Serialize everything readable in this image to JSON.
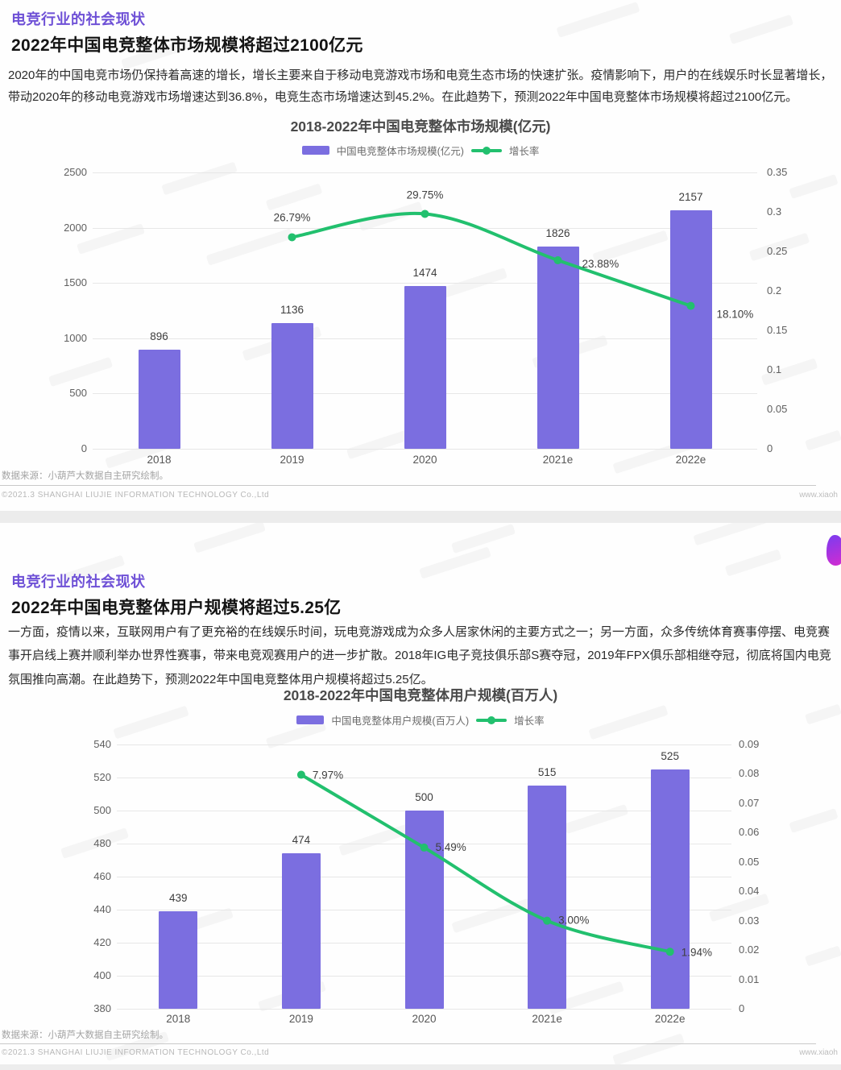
{
  "slide1": {
    "title": "电竞行业的社会现状",
    "subtitle": "2022年中国电竞整体市场规模将超过2100亿元",
    "body": "2020年的中国电竞市场仍保持着高速的增长，增长主要来自于移动电竞游戏市场和电竞生态市场的快速扩张。疫情影响下，用户的在线娱乐时长显著增长，带动2020年的移动电竞游戏市场增速达到36.8%，电竞生态市场增速达到45.2%。在此趋势下，预测2022年中国电竞整体市场规模将超过2100亿元。",
    "footer_source": "数据来源：小葫芦大数据自主研究绘制。",
    "footer_copyright": "©2021.3 SHANGHAI LIUJIE INFORMATION TECHNOLOGY Co.,Ltd",
    "footer_site": "www.xiaoh"
  },
  "slide2": {
    "title": "电竞行业的社会现状",
    "subtitle": "2022年中国电竞整体用户规模将超过5.25亿",
    "body": "一方面，疫情以来，互联网用户有了更充裕的在线娱乐时间，玩电竞游戏成为众多人居家休闲的主要方式之一；另一方面，众多传统体育赛事停摆、电竞赛事开启线上赛并顺利举办世界性赛事，带来电竞观赛用户的进一步扩散。2018年IG电子竞技俱乐部S赛夺冠，2019年FPX俱乐部相继夺冠，彻底将国内电竞氛围推向高潮。在此趋势下，预测2022年中国电竞整体用户规模将超过5.25亿。",
    "footer_source": "数据来源：小葫芦大数据自主研究绘制。",
    "footer_copyright": "©2021.3 SHANGHAI LIUJIE INFORMATION TECHNOLOGY Co.,Ltd",
    "footer_site": "www.xiaoh"
  },
  "chart_data": [
    {
      "type": "bar+line",
      "title": "2018-2022年中国电竞整体市场规模(亿元)",
      "categories": [
        "2018",
        "2019",
        "2020",
        "2021e",
        "2022e"
      ],
      "series": [
        {
          "name": "中国电竞整体市场规模(亿元)",
          "type": "bar",
          "axis": "left",
          "values": [
            896,
            1136,
            1474,
            1826,
            2157
          ]
        },
        {
          "name": "增长率",
          "type": "line",
          "axis": "right",
          "values": [
            null,
            0.2679,
            0.2975,
            0.2388,
            0.181
          ],
          "labels": [
            "",
            "26.79%",
            "29.75%",
            "23.88%",
            "18.10%"
          ]
        }
      ],
      "left_axis": {
        "min": 0,
        "max": 2500,
        "ticks": [
          "2500",
          "2000",
          "1500",
          "1000",
          "500",
          "0"
        ]
      },
      "right_axis": {
        "min": 0,
        "max": 0.35,
        "ticks": [
          "0.35",
          "0.3",
          "0.25",
          "0.2",
          "0.15",
          "0.1",
          "0.05",
          "0"
        ]
      },
      "legend": [
        "中国电竞整体市场规模(亿元)",
        "增长率"
      ],
      "legend_position": "top",
      "grid": true,
      "colors": {
        "bar": "#7b6ee0",
        "line": "#22c06e"
      }
    },
    {
      "type": "bar+line",
      "title": "2018-2022年中国电竞整体用户规模(百万人)",
      "categories": [
        "2018",
        "2019",
        "2020",
        "2021e",
        "2022e"
      ],
      "series": [
        {
          "name": "中国电竞整体用户规模(百万人)",
          "type": "bar",
          "axis": "left",
          "values": [
            439,
            474,
            500,
            515,
            525
          ]
        },
        {
          "name": "增长率",
          "type": "line",
          "axis": "right",
          "values": [
            null,
            0.0797,
            0.0549,
            0.03,
            0.0194
          ],
          "labels": [
            "",
            "7.97%",
            "5.49%",
            "3.00%",
            "1.94%"
          ]
        }
      ],
      "left_axis": {
        "min": 380,
        "max": 540,
        "ticks": [
          "540",
          "520",
          "500",
          "480",
          "460",
          "440",
          "420",
          "400",
          "380"
        ]
      },
      "right_axis": {
        "min": 0,
        "max": 0.09,
        "ticks": [
          "0.09",
          "0.08",
          "0.07",
          "0.06",
          "0.05",
          "0.04",
          "0.03",
          "0.02",
          "0.01",
          "0"
        ]
      },
      "legend": [
        "中国电竞整体用户规模(百万人)",
        "增长率"
      ],
      "legend_position": "top",
      "grid": true,
      "colors": {
        "bar": "#7b6ee0",
        "line": "#22c06e"
      }
    }
  ]
}
